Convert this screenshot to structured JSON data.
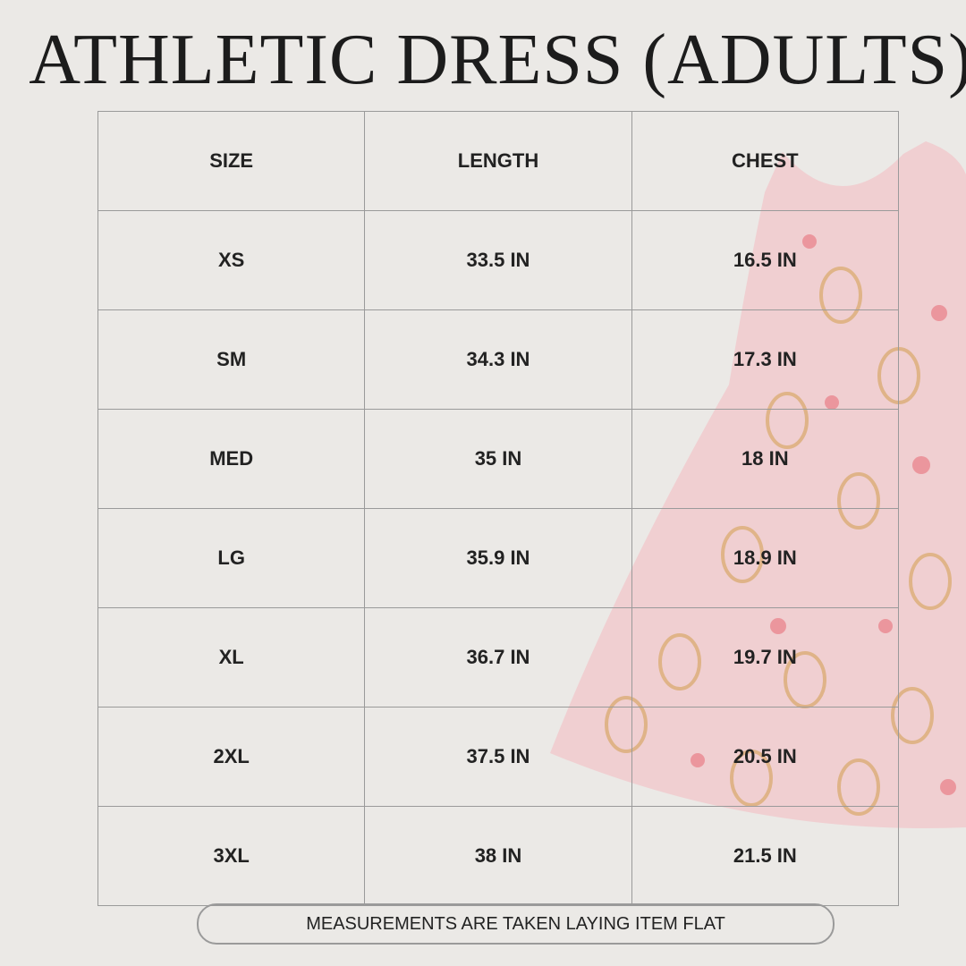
{
  "header": {
    "title": "ATHLETIC DRESS (ADULTS)"
  },
  "table": {
    "columns": [
      "SIZE",
      "LENGTH",
      "CHEST"
    ],
    "rows": [
      [
        "XS",
        "33.5 IN",
        "16.5 IN"
      ],
      [
        "SM",
        "34.3 IN",
        "17.3 IN"
      ],
      [
        "MED",
        "35 IN",
        "18 IN"
      ],
      [
        "LG",
        "35.9 IN",
        "18.9 IN"
      ],
      [
        "XL",
        "36.7 IN",
        "19.7 IN"
      ],
      [
        "2XL",
        "37.5 IN",
        "20.5 IN"
      ],
      [
        "3XL",
        "38 IN",
        "21.5 IN"
      ]
    ]
  },
  "footer": {
    "note": "MEASUREMENTS ARE TAKEN LAYING ITEM FLAT"
  }
}
